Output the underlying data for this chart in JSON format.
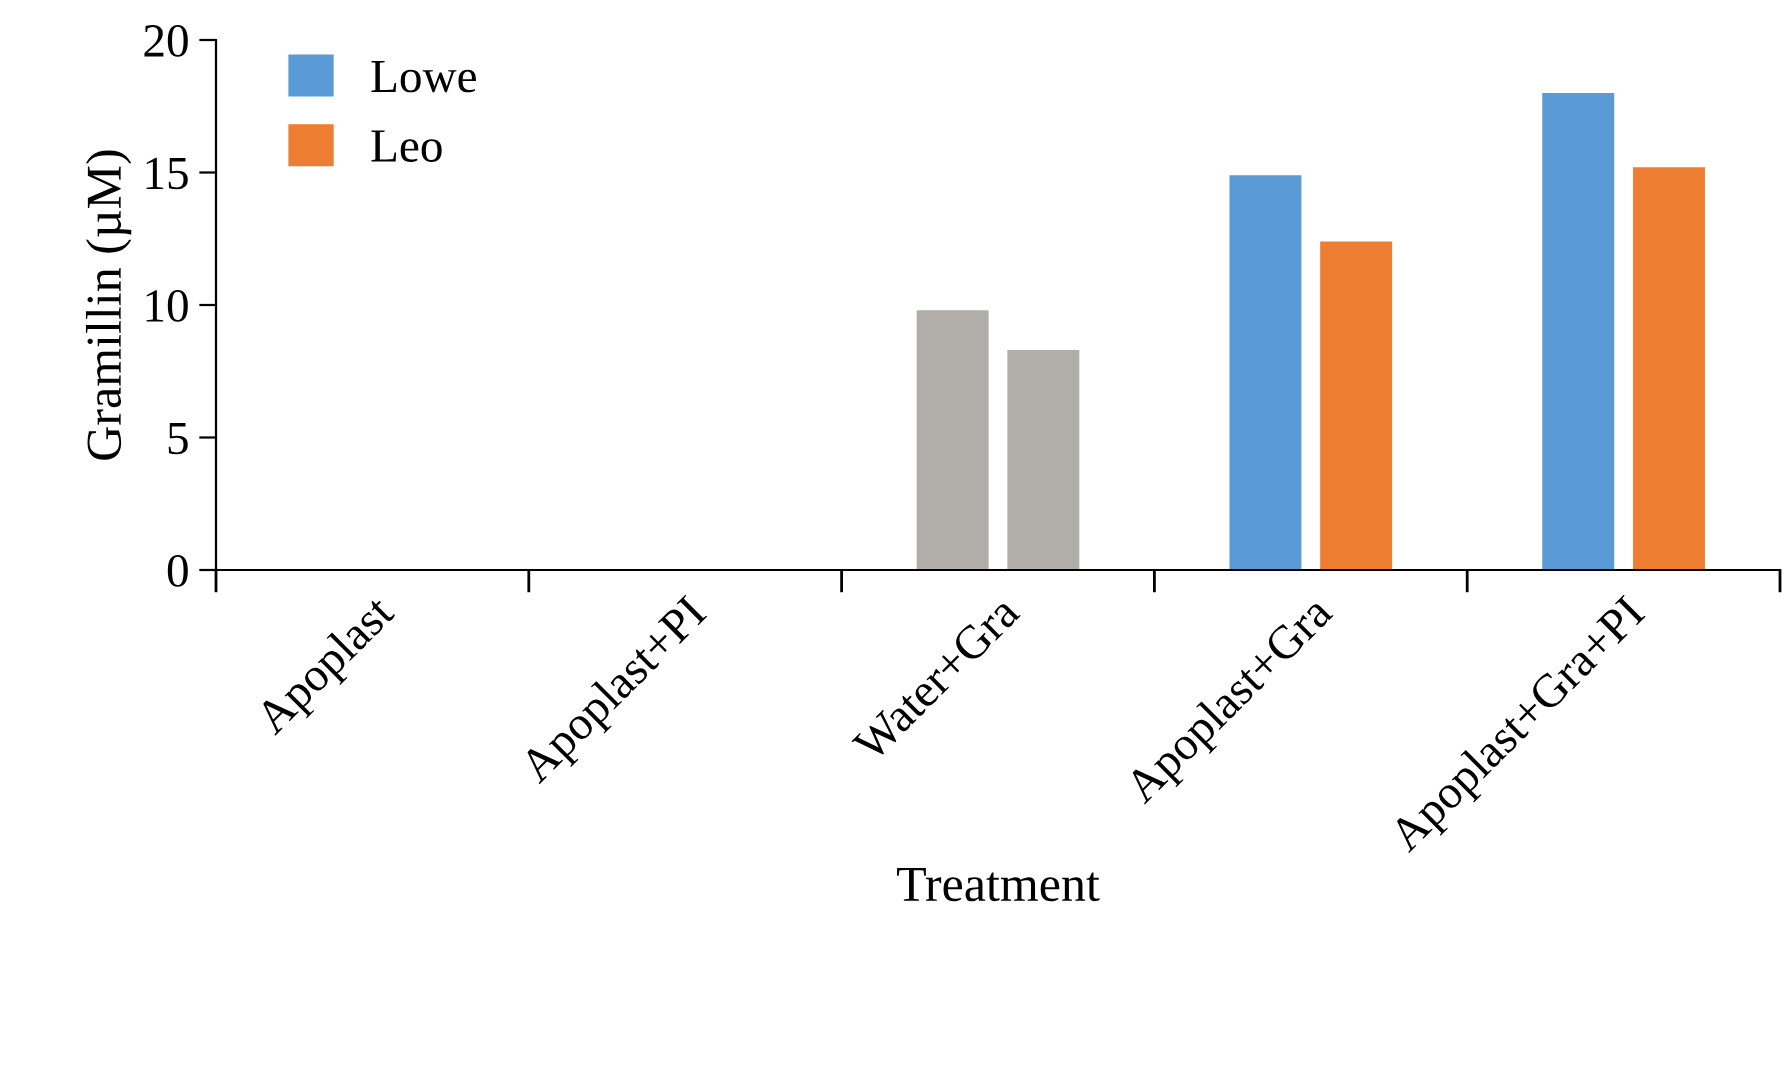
{
  "chart_data": {
    "type": "bar",
    "xlabel": "Treatment",
    "ylabel": "Gramillin (µM)",
    "categories": [
      "Apoplast",
      "Apoplast+PI",
      "Water+Gra",
      "Apoplast+Gra",
      "Apoplast+Gra+PI"
    ],
    "series": [
      {
        "name": "Lowe",
        "color": "#5b9bd5",
        "colors": [
          "#5b9bd5",
          "#5b9bd5",
          "#b1ada9",
          "#5b9bd5",
          "#5b9bd5"
        ],
        "values": [
          0,
          0,
          9.8,
          14.9,
          18.0
        ]
      },
      {
        "name": "Leo",
        "color": "#ed7d31",
        "colors": [
          "#ed7d31",
          "#ed7d31",
          "#b1ada9",
          "#ed7d31",
          "#ed7d31"
        ],
        "values": [
          0,
          0,
          8.3,
          12.4,
          15.2
        ]
      }
    ],
    "ylim": [
      0,
      20
    ],
    "yticks": [
      0,
      5,
      10,
      15,
      20
    ],
    "grid": false,
    "legend": "top left"
  }
}
